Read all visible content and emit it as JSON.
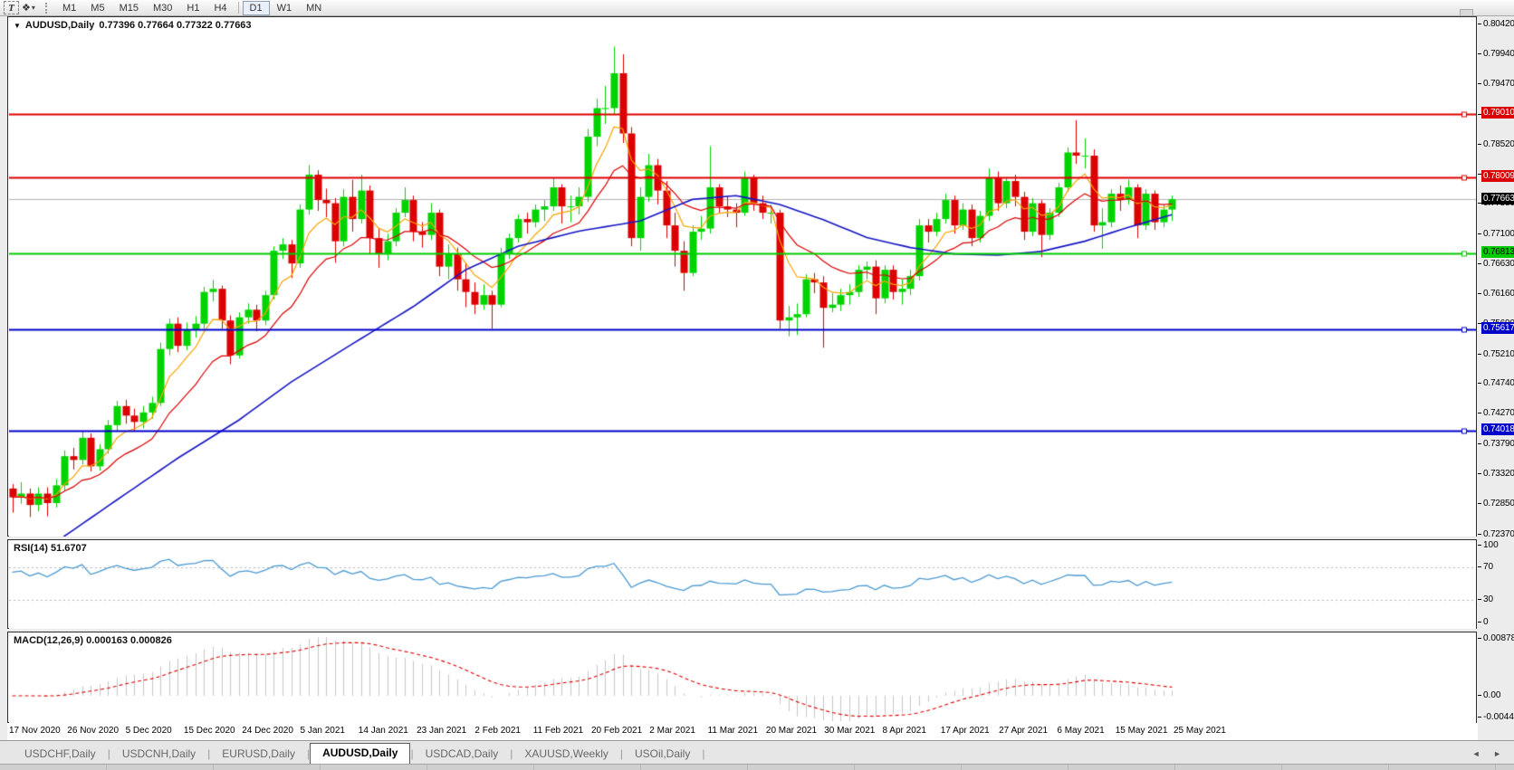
{
  "toolbar": {
    "text_tool": "T",
    "indicator_glyph": "❖",
    "dropdown_caret": "▾",
    "timeframes": [
      "M1",
      "M5",
      "M15",
      "M30",
      "H1",
      "H4",
      "D1",
      "W1",
      "MN"
    ],
    "active_timeframe": "D1"
  },
  "chart_header": {
    "collapse_icon": "▼",
    "title": "AUDUSD,Daily",
    "ohlc": "0.77396 0.77664 0.77322 0.77663"
  },
  "price_axis": {
    "tick_labels": [
      "0.80420",
      "0.79940",
      "0.79470",
      "0.78990",
      "0.78520",
      "0.78050",
      "0.77580",
      "0.77100",
      "0.76630",
      "0.76160",
      "0.75690",
      "0.75210",
      "0.74740",
      "0.74270",
      "0.73790",
      "0.73320",
      "0.72850",
      "0.72370"
    ],
    "tags": [
      {
        "value": 0.7901,
        "label": "0.79010",
        "bg": "#dd0000",
        "fg": "#ffffff"
      },
      {
        "value": 0.78009,
        "label": "0.78009",
        "bg": "#dd0000",
        "fg": "#ffffff"
      },
      {
        "value": 0.77663,
        "label": "0.77663",
        "bg": "#000000",
        "fg": "#ffffff"
      },
      {
        "value": 0.76813,
        "label": "0.76813",
        "bg": "#00cc00",
        "fg": "#000000"
      },
      {
        "value": 0.75617,
        "label": "0.75617",
        "bg": "#0000cc",
        "fg": "#ffffff"
      },
      {
        "value": 0.74018,
        "label": "0.74018",
        "bg": "#0000cc",
        "fg": "#ffffff"
      }
    ]
  },
  "chart_data": {
    "type": "candlestick",
    "symbol": "AUDUSD",
    "timeframe": "Daily",
    "title": "AUDUSD,Daily 0.77396 0.77664 0.77322 0.77663",
    "y_axis": {
      "min": 0.72342,
      "max": 0.8052
    },
    "x_axis_dates": [
      "17 Nov 2020",
      "26 Nov 2020",
      "5 Dec 2020",
      "15 Dec 2020",
      "24 Dec 2020",
      "5 Jan 2021",
      "14 Jan 2021",
      "23 Jan 2021",
      "2 Feb 2021",
      "11 Feb 2021",
      "20 Feb 2021",
      "2 Mar 2021",
      "11 Mar 2021",
      "20 Mar 2021",
      "30 Mar 2021",
      "8 Apr 2021",
      "17 Apr 2021",
      "27 Apr 2021",
      "6 May 2021",
      "15 May 2021",
      "25 May 2021"
    ],
    "bull_color": "#00d400",
    "bear_color": "#dc0000",
    "candles": [
      [
        0.731,
        0.7317,
        0.7272,
        0.7296
      ],
      [
        0.7296,
        0.732,
        0.7286,
        0.7302
      ],
      [
        0.7302,
        0.731,
        0.7265,
        0.7284
      ],
      [
        0.7284,
        0.7312,
        0.7274,
        0.7302
      ],
      [
        0.7302,
        0.7312,
        0.7266,
        0.7287
      ],
      [
        0.7287,
        0.7325,
        0.728,
        0.7315
      ],
      [
        0.7315,
        0.737,
        0.7307,
        0.7361
      ],
      [
        0.7361,
        0.7374,
        0.734,
        0.7355
      ],
      [
        0.7355,
        0.74,
        0.7348,
        0.739
      ],
      [
        0.739,
        0.7397,
        0.7337,
        0.7345
      ],
      [
        0.7345,
        0.738,
        0.7338,
        0.7372
      ],
      [
        0.7372,
        0.7418,
        0.7365,
        0.741
      ],
      [
        0.741,
        0.7448,
        0.74,
        0.744
      ],
      [
        0.744,
        0.745,
        0.7412,
        0.7425
      ],
      [
        0.7425,
        0.7436,
        0.74,
        0.7415
      ],
      [
        0.7415,
        0.744,
        0.7405,
        0.743
      ],
      [
        0.743,
        0.7455,
        0.742,
        0.7445
      ],
      [
        0.7445,
        0.754,
        0.744,
        0.753
      ],
      [
        0.753,
        0.7578,
        0.752,
        0.757
      ],
      [
        0.757,
        0.758,
        0.7525,
        0.7535
      ],
      [
        0.7535,
        0.7572,
        0.7528,
        0.756
      ],
      [
        0.756,
        0.7582,
        0.7548,
        0.757
      ],
      [
        0.757,
        0.7628,
        0.7562,
        0.762
      ],
      [
        0.762,
        0.7639,
        0.7605,
        0.7625
      ],
      [
        0.7625,
        0.763,
        0.7562,
        0.7575
      ],
      [
        0.7575,
        0.7583,
        0.7506,
        0.752
      ],
      [
        0.752,
        0.7588,
        0.7515,
        0.758
      ],
      [
        0.758,
        0.7602,
        0.757,
        0.7592
      ],
      [
        0.7592,
        0.76,
        0.7558,
        0.7575
      ],
      [
        0.7575,
        0.7622,
        0.7568,
        0.7615
      ],
      [
        0.7615,
        0.7692,
        0.7608,
        0.7685
      ],
      [
        0.7685,
        0.7705,
        0.7672,
        0.7695
      ],
      [
        0.7695,
        0.7702,
        0.7642,
        0.7665
      ],
      [
        0.7665,
        0.7758,
        0.7658,
        0.775
      ],
      [
        0.775,
        0.782,
        0.7742,
        0.7805
      ],
      [
        0.7805,
        0.7812,
        0.7748,
        0.7765
      ],
      [
        0.7765,
        0.7783,
        0.7738,
        0.776
      ],
      [
        0.776,
        0.7768,
        0.7666,
        0.77
      ],
      [
        0.77,
        0.7782,
        0.7692,
        0.777
      ],
      [
        0.777,
        0.7797,
        0.7715,
        0.7735
      ],
      [
        0.7735,
        0.7805,
        0.7728,
        0.778
      ],
      [
        0.778,
        0.7788,
        0.768,
        0.7705
      ],
      [
        0.7705,
        0.772,
        0.7658,
        0.768
      ],
      [
        0.768,
        0.7712,
        0.767,
        0.77
      ],
      [
        0.77,
        0.7752,
        0.7692,
        0.7745
      ],
      [
        0.7745,
        0.7785,
        0.7738,
        0.7765
      ],
      [
        0.7765,
        0.7772,
        0.77,
        0.7715
      ],
      [
        0.7715,
        0.773,
        0.769,
        0.771
      ],
      [
        0.771,
        0.776,
        0.7702,
        0.7745
      ],
      [
        0.7745,
        0.775,
        0.7645,
        0.766
      ],
      [
        0.766,
        0.7695,
        0.764,
        0.768
      ],
      [
        0.768,
        0.769,
        0.7622,
        0.764
      ],
      [
        0.764,
        0.7666,
        0.7596,
        0.762
      ],
      [
        0.762,
        0.7635,
        0.7585,
        0.76
      ],
      [
        0.76,
        0.7632,
        0.7592,
        0.7615
      ],
      [
        0.7615,
        0.7622,
        0.7562,
        0.76
      ],
      [
        0.76,
        0.769,
        0.7596,
        0.768
      ],
      [
        0.768,
        0.7712,
        0.7672,
        0.7705
      ],
      [
        0.7705,
        0.7742,
        0.7698,
        0.7735
      ],
      [
        0.7735,
        0.7745,
        0.7712,
        0.773
      ],
      [
        0.773,
        0.7758,
        0.7722,
        0.775
      ],
      [
        0.775,
        0.7765,
        0.7732,
        0.7755
      ],
      [
        0.7755,
        0.78,
        0.7748,
        0.7785
      ],
      [
        0.7785,
        0.779,
        0.7728,
        0.7755
      ],
      [
        0.7755,
        0.7772,
        0.773,
        0.7755
      ],
      [
        0.7755,
        0.7785,
        0.7742,
        0.777
      ],
      [
        0.777,
        0.7877,
        0.7762,
        0.7865
      ],
      [
        0.7865,
        0.7925,
        0.785,
        0.791
      ],
      [
        0.791,
        0.7945,
        0.7885,
        0.791
      ],
      [
        0.791,
        0.8007,
        0.79,
        0.7965
      ],
      [
        0.7965,
        0.7995,
        0.7855,
        0.787
      ],
      [
        0.787,
        0.788,
        0.7692,
        0.7705
      ],
      [
        0.7705,
        0.7785,
        0.7685,
        0.777
      ],
      [
        0.777,
        0.7838,
        0.7762,
        0.782
      ],
      [
        0.782,
        0.783,
        0.7758,
        0.778
      ],
      [
        0.778,
        0.7795,
        0.7705,
        0.7725
      ],
      [
        0.7725,
        0.7745,
        0.766,
        0.7685
      ],
      [
        0.7685,
        0.77,
        0.7622,
        0.765
      ],
      [
        0.765,
        0.7725,
        0.7645,
        0.7715
      ],
      [
        0.7715,
        0.774,
        0.7702,
        0.772
      ],
      [
        0.772,
        0.785,
        0.7712,
        0.7785
      ],
      [
        0.7785,
        0.779,
        0.7745,
        0.7755
      ],
      [
        0.7755,
        0.7772,
        0.7738,
        0.775
      ],
      [
        0.775,
        0.776,
        0.7722,
        0.7745
      ],
      [
        0.7745,
        0.781,
        0.774,
        0.78
      ],
      [
        0.78,
        0.7805,
        0.7748,
        0.776
      ],
      [
        0.776,
        0.7772,
        0.7735,
        0.7745
      ],
      [
        0.7745,
        0.7758,
        0.7728,
        0.7745
      ],
      [
        0.7745,
        0.775,
        0.7562,
        0.7575
      ],
      [
        0.7575,
        0.7598,
        0.755,
        0.758
      ],
      [
        0.758,
        0.7602,
        0.7552,
        0.7585
      ],
      [
        0.7585,
        0.7648,
        0.758,
        0.764
      ],
      [
        0.764,
        0.765,
        0.7618,
        0.7635
      ],
      [
        0.7635,
        0.7645,
        0.7532,
        0.7595
      ],
      [
        0.7595,
        0.7618,
        0.7588,
        0.76
      ],
      [
        0.76,
        0.7625,
        0.759,
        0.7615
      ],
      [
        0.7615,
        0.7632,
        0.76,
        0.762
      ],
      [
        0.762,
        0.7662,
        0.7612,
        0.7655
      ],
      [
        0.7655,
        0.7668,
        0.764,
        0.766
      ],
      [
        0.766,
        0.767,
        0.7585,
        0.761
      ],
      [
        0.761,
        0.7662,
        0.7602,
        0.7655
      ],
      [
        0.7655,
        0.7662,
        0.7608,
        0.762
      ],
      [
        0.762,
        0.764,
        0.76,
        0.7625
      ],
      [
        0.7625,
        0.7655,
        0.7615,
        0.7645
      ],
      [
        0.7645,
        0.7735,
        0.7638,
        0.7725
      ],
      [
        0.7725,
        0.7735,
        0.7698,
        0.7715
      ],
      [
        0.7715,
        0.7745,
        0.7708,
        0.7735
      ],
      [
        0.7735,
        0.7775,
        0.7728,
        0.7765
      ],
      [
        0.7765,
        0.7772,
        0.7712,
        0.7725
      ],
      [
        0.7725,
        0.776,
        0.7718,
        0.775
      ],
      [
        0.775,
        0.7758,
        0.7692,
        0.7705
      ],
      [
        0.7705,
        0.7748,
        0.7698,
        0.774
      ],
      [
        0.774,
        0.7815,
        0.7732,
        0.78
      ],
      [
        0.78,
        0.781,
        0.7748,
        0.776
      ],
      [
        0.776,
        0.78,
        0.7752,
        0.7795
      ],
      [
        0.7795,
        0.7805,
        0.7755,
        0.777
      ],
      [
        0.777,
        0.7778,
        0.7702,
        0.7715
      ],
      [
        0.7715,
        0.7768,
        0.7708,
        0.776
      ],
      [
        0.776,
        0.7765,
        0.7675,
        0.771
      ],
      [
        0.771,
        0.7752,
        0.7702,
        0.7745
      ],
      [
        0.7745,
        0.7792,
        0.7738,
        0.7785
      ],
      [
        0.7785,
        0.7848,
        0.7778,
        0.784
      ],
      [
        0.784,
        0.7891,
        0.7822,
        0.7835
      ],
      [
        0.7835,
        0.7862,
        0.7815,
        0.7835
      ],
      [
        0.7835,
        0.7845,
        0.7715,
        0.7725
      ],
      [
        0.7725,
        0.7752,
        0.7688,
        0.773
      ],
      [
        0.773,
        0.7782,
        0.7722,
        0.7775
      ],
      [
        0.7775,
        0.7788,
        0.7748,
        0.7765
      ],
      [
        0.7765,
        0.7797,
        0.7758,
        0.7785
      ],
      [
        0.7785,
        0.779,
        0.7705,
        0.7725
      ],
      [
        0.7725,
        0.7782,
        0.7718,
        0.7775
      ],
      [
        0.7775,
        0.778,
        0.7718,
        0.773
      ],
      [
        0.773,
        0.7758,
        0.7722,
        0.775
      ],
      [
        0.775,
        0.7772,
        0.7732,
        0.77663
      ]
    ],
    "moving_averages": [
      {
        "name": "fast",
        "type": "ema",
        "period": 6,
        "color": "#f9a400"
      },
      {
        "name": "medium",
        "type": "ema",
        "period": 14,
        "color": "#dd0000"
      },
      {
        "name": "slow",
        "type": "path",
        "color": "#1515c4",
        "points": [
          [
            0,
            0.714
          ],
          [
            6,
            0.7235
          ],
          [
            12,
            0.7292
          ],
          [
            19,
            0.7358
          ],
          [
            26,
            0.7418
          ],
          [
            32,
            0.7478
          ],
          [
            39,
            0.7538
          ],
          [
            46,
            0.7597
          ],
          [
            52,
            0.7655
          ],
          [
            58,
            0.7692
          ],
          [
            65,
            0.7716
          ],
          [
            72,
            0.7732
          ],
          [
            78,
            0.7766
          ],
          [
            83,
            0.7772
          ],
          [
            88,
            0.7758
          ],
          [
            93,
            0.7734
          ],
          [
            98,
            0.7706
          ],
          [
            103,
            0.769
          ],
          [
            108,
            0.768
          ],
          [
            113,
            0.7678
          ],
          [
            118,
            0.7684
          ],
          [
            123,
            0.77
          ],
          [
            128,
            0.7722
          ],
          [
            133,
            0.7742
          ]
        ]
      }
    ],
    "hlines": [
      {
        "value": 0.7901,
        "color": "#dd0000",
        "width": 2
      },
      {
        "value": 0.78009,
        "color": "#dd0000",
        "width": 2
      },
      {
        "value": 0.76813,
        "color": "#00cc00",
        "width": 2
      },
      {
        "value": 0.75617,
        "color": "#0000cc",
        "width": 2
      },
      {
        "value": 0.74018,
        "color": "#0000cc",
        "width": 2
      }
    ],
    "current_price": {
      "value": 0.77663,
      "color": "#b2b2b2"
    },
    "indicators": {
      "rsi": {
        "label": "RSI(14) 51.6707",
        "period": 14,
        "value": 51.6707,
        "levels": [
          70,
          30
        ],
        "scale_labels": [
          "100",
          "70",
          "30",
          "0"
        ],
        "range": [
          0,
          100
        ],
        "color": "#4a9ad2",
        "level_color": "#b5b5b5"
      },
      "macd": {
        "label": "MACD(12,26,9) 0.000163 0.000826",
        "fast": 12,
        "slow": 26,
        "signal": 9,
        "value": 0.000163,
        "signal_value": 0.000826,
        "scale_labels": [
          "0.008782",
          "0.00",
          "-0.004455"
        ],
        "scale_max": 0.008782,
        "scale_min": -0.004455,
        "histogram_color": "#c6c6c6",
        "signal_color": "#dd0000"
      }
    }
  },
  "bottom_tabs": {
    "tabs": [
      "USDCHF,Daily",
      "USDCNH,Daily",
      "EURUSD,Daily",
      "AUDUSD,Daily",
      "USDCAD,Daily",
      "XAUUSD,Weekly",
      "USOil,Daily"
    ],
    "active": "AUDUSD,Daily",
    "left_arrow": "◄",
    "right_arrow": "►"
  }
}
